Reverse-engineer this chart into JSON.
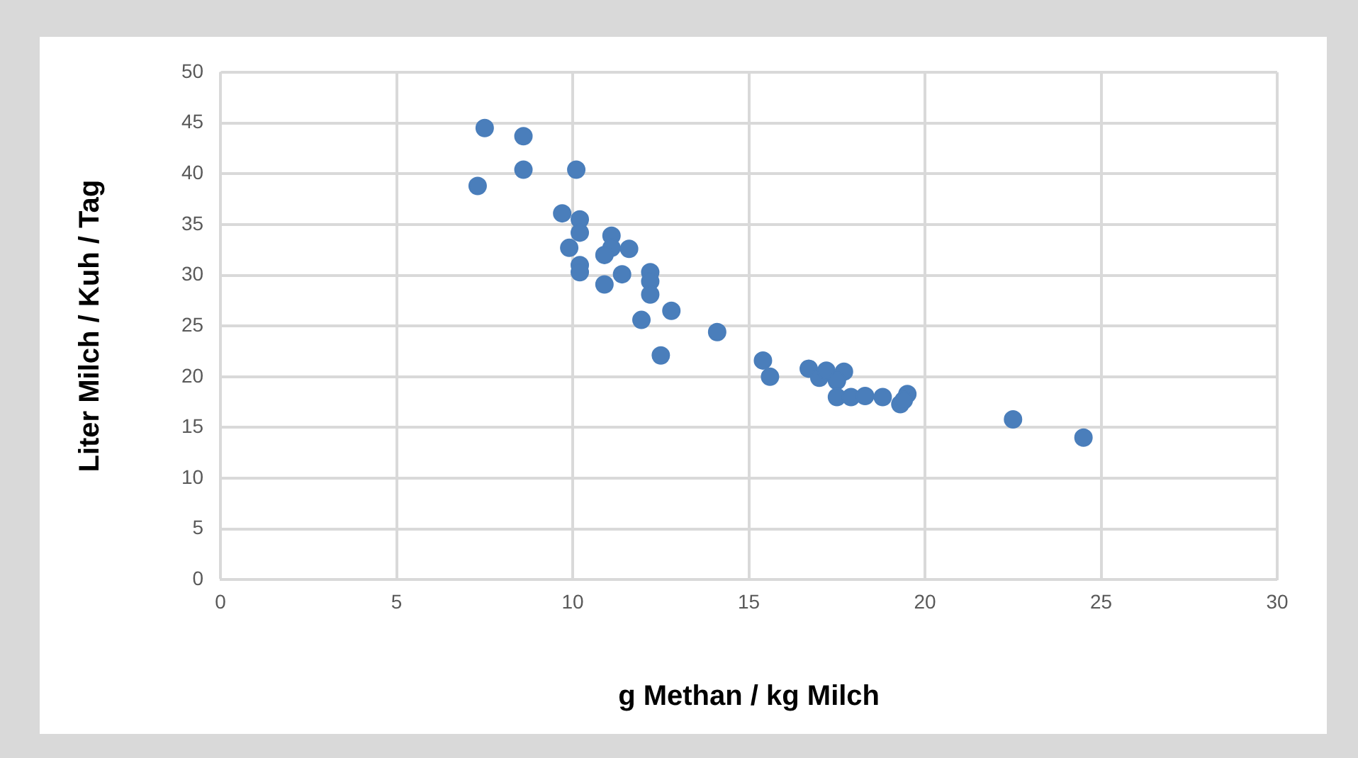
{
  "chart_data": {
    "type": "scatter",
    "xlabel": "g Methan / kg Milch",
    "ylabel": "Liter Milch / Kuh / Tag",
    "x": [
      7.5,
      7.3,
      8.6,
      8.6,
      10.1,
      9.7,
      10.2,
      10.2,
      9.9,
      10.2,
      10.2,
      11.1,
      11.1,
      10.9,
      11.6,
      10.9,
      11.4,
      12.2,
      12.2,
      12.2,
      11.95,
      12.8,
      12.5,
      14.1,
      15.4,
      15.6,
      16.7,
      17.0,
      17.2,
      17.7,
      17.5,
      17.5,
      17.9,
      18.3,
      18.8,
      19.3,
      19.5,
      19.4,
      22.5,
      24.5
    ],
    "series": [
      {
        "color": "#4a7ebb",
        "values": [
          44.5,
          38.8,
          43.7,
          40.4,
          40.4,
          36.1,
          35.5,
          34.2,
          32.7,
          31,
          30.3,
          33.9,
          32.7,
          32,
          32.6,
          29.1,
          30.1,
          30.3,
          29.4,
          28.1,
          25.6,
          26.5,
          22.1,
          24.4,
          21.6,
          20,
          20.8,
          19.9,
          20.6,
          20.5,
          19.6,
          18,
          18,
          18.1,
          18,
          17.3,
          18.3,
          17.7,
          15.8,
          14
        ]
      }
    ],
    "xlim": [
      0,
      30
    ],
    "xticks": [
      0,
      5,
      10,
      15,
      20,
      25,
      30
    ],
    "ylim": [
      0,
      50
    ],
    "yticks": [
      0,
      5,
      10,
      15,
      20,
      25,
      30,
      35,
      40,
      45,
      50
    ],
    "grid": true,
    "legend": false,
    "marker": "circle"
  }
}
